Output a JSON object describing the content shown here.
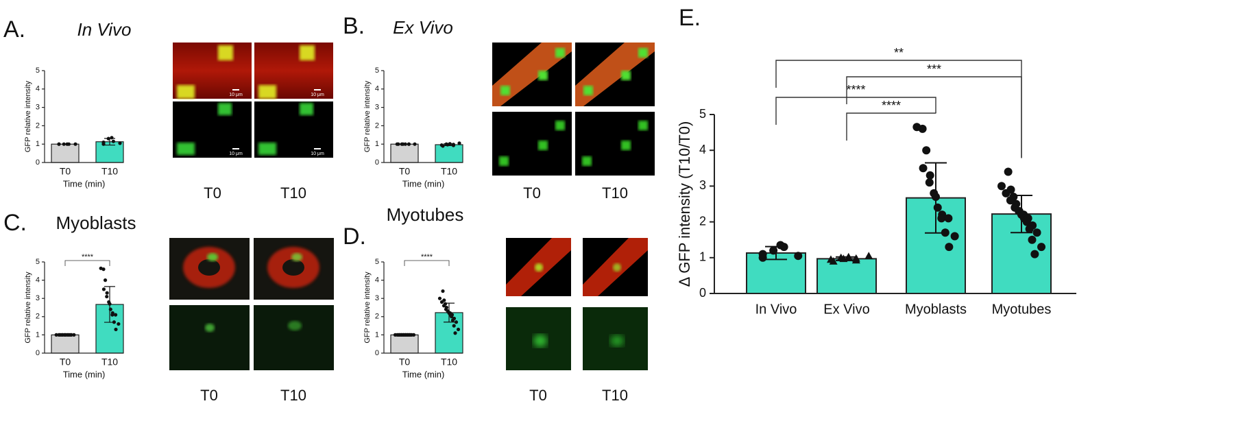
{
  "chart_data": [
    {
      "type": "bar",
      "panel": "A.",
      "title": "In Vivo",
      "title_italic": true,
      "ylabel": "GFP relative intensity",
      "xlabel": "Time (min)",
      "categories": [
        "T0",
        "T10"
      ],
      "values": [
        1.0,
        1.13
      ],
      "errors": [
        0,
        0.18
      ],
      "points": [
        [
          1,
          1,
          1,
          1,
          1,
          1
        ],
        [
          1.0,
          1.1,
          1.3,
          1.35,
          1.15,
          1.05
        ]
      ],
      "colors": [
        "#d3d3d3",
        "#40dcc0"
      ],
      "ylim": [
        0,
        5
      ],
      "yticks": [
        0,
        1,
        2,
        3,
        4,
        5
      ],
      "image_labels": [
        "T0",
        "T10"
      ],
      "scale_bar_label": "10 μm"
    },
    {
      "type": "bar",
      "panel": "B.",
      "title": "Ex Vivo",
      "title_italic": true,
      "ylabel": "GFP relative intensity",
      "xlabel": "Time (min)",
      "categories": [
        "T0",
        "T10"
      ],
      "values": [
        1.0,
        0.97
      ],
      "errors": [
        0,
        0.05
      ],
      "points": [
        [
          1,
          1,
          1,
          1,
          1,
          1,
          1,
          1
        ],
        [
          0.9,
          0.95,
          1.0,
          0.97,
          1.02,
          0.93,
          0.98,
          1.05
        ]
      ],
      "colors": [
        "#d3d3d3",
        "#40dcc0"
      ],
      "ylim": [
        0,
        5
      ],
      "yticks": [
        0,
        1,
        2,
        3,
        4,
        5
      ],
      "image_labels": [
        "T0",
        "T10"
      ]
    },
    {
      "type": "bar",
      "panel": "C.",
      "title": "Myoblasts",
      "title_italic": false,
      "ylabel": "GFP relative intensity",
      "xlabel": "Time (min)",
      "categories": [
        "T0",
        "T10"
      ],
      "values": [
        1.0,
        2.67
      ],
      "errors": [
        0,
        0.98
      ],
      "points": [
        [
          1,
          1,
          1,
          1,
          1,
          1,
          1,
          1,
          1,
          1,
          1,
          1,
          1,
          1,
          1
        ],
        [
          4.6,
          4.65,
          4.0,
          3.5,
          3.3,
          3.1,
          2.8,
          2.7,
          2.4,
          2.2,
          2.1,
          2.1,
          1.7,
          1.6,
          1.3
        ]
      ],
      "colors": [
        "#d3d3d3",
        "#40dcc0"
      ],
      "ylim": [
        0,
        5
      ],
      "yticks": [
        0,
        1,
        2,
        3,
        4,
        5
      ],
      "comparisons": [
        {
          "from": "T0",
          "to": "T10",
          "label": "****"
        }
      ],
      "image_labels": [
        "T0",
        "T10"
      ]
    },
    {
      "type": "bar",
      "panel": "D.",
      "title": "Myotubes",
      "title_italic": false,
      "ylabel": "GFP relative intensity",
      "xlabel": "Time (min)",
      "categories": [
        "T0",
        "T10"
      ],
      "values": [
        1.0,
        2.22
      ],
      "errors": [
        0,
        0.52
      ],
      "points": [
        [
          1,
          1,
          1,
          1,
          1,
          1,
          1,
          1,
          1,
          1,
          1,
          1,
          1,
          1,
          1,
          1,
          1,
          1,
          1,
          1,
          1
        ],
        [
          3.4,
          3.0,
          2.9,
          2.8,
          2.7,
          2.6,
          2.5,
          2.4,
          2.3,
          2.3,
          2.2,
          2.2,
          2.1,
          2.1,
          2.0,
          1.9,
          1.8,
          1.7,
          1.5,
          1.3,
          1.1
        ]
      ],
      "colors": [
        "#d3d3d3",
        "#40dcc0"
      ],
      "ylim": [
        0,
        5
      ],
      "yticks": [
        0,
        1,
        2,
        3,
        4,
        5
      ],
      "comparisons": [
        {
          "from": "T0",
          "to": "T10",
          "label": "****"
        }
      ],
      "image_labels": [
        "T0",
        "T10"
      ]
    },
    {
      "type": "bar",
      "panel": "E.",
      "ylabel": "Δ GFP intensity (T10/T0)",
      "categories": [
        "In Vivo",
        "Ex Vivo",
        "Myoblasts",
        "Myotubes"
      ],
      "values": [
        1.13,
        0.97,
        2.67,
        2.22
      ],
      "errors": [
        0.18,
        0.05,
        0.98,
        0.52
      ],
      "points": [
        [
          1.0,
          1.1,
          1.2,
          1.35,
          1.3,
          1.05
        ],
        [
          0.9,
          0.95,
          1.0,
          0.97,
          1.02,
          0.93,
          0.98,
          1.05
        ],
        [
          4.6,
          4.65,
          4.0,
          3.5,
          3.3,
          3.1,
          2.8,
          2.7,
          2.4,
          2.2,
          2.1,
          2.1,
          1.7,
          1.6,
          1.3
        ],
        [
          3.4,
          3.0,
          2.9,
          2.8,
          2.7,
          2.6,
          2.5,
          2.4,
          2.3,
          2.3,
          2.2,
          2.2,
          2.1,
          2.1,
          2.0,
          1.9,
          1.8,
          1.7,
          1.5,
          1.3,
          1.1
        ]
      ],
      "markers": [
        "circle",
        "triangle",
        "circle",
        "circle"
      ],
      "colors": [
        "#40dcc0",
        "#40dcc0",
        "#40dcc0",
        "#40dcc0"
      ],
      "ylim": [
        0,
        5
      ],
      "yticks": [
        0,
        1,
        2,
        3,
        4,
        5
      ],
      "comparisons": [
        {
          "from": "In Vivo",
          "to": "Myotubes",
          "label": "**"
        },
        {
          "from": "Ex Vivo",
          "to": "Myotubes",
          "label": "***"
        },
        {
          "from": "In Vivo",
          "to": "Myoblasts",
          "label": "****"
        },
        {
          "from": "Ex Vivo",
          "to": "Myoblasts",
          "label": "****"
        }
      ]
    }
  ]
}
